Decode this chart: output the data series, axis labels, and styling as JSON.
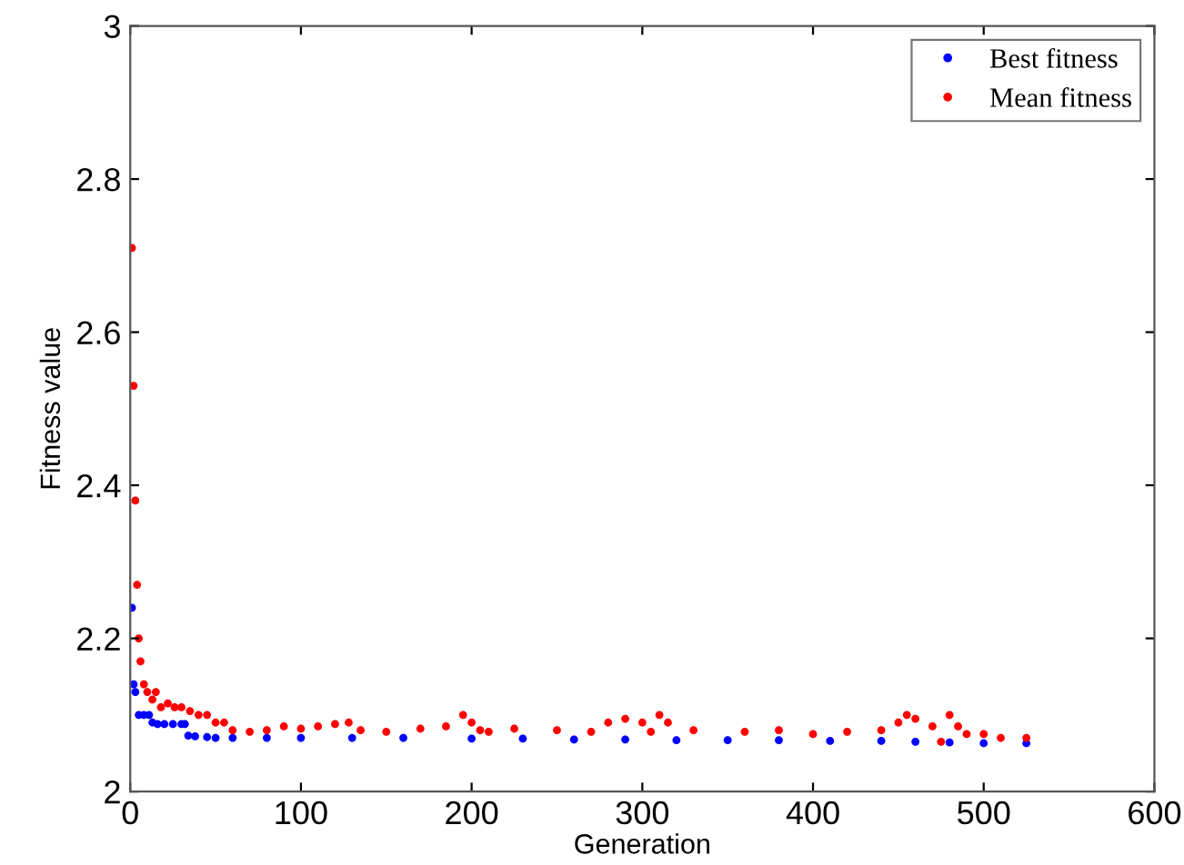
{
  "chart_data": {
    "type": "scatter",
    "xlabel": "Generation",
    "ylabel": "Fitness value",
    "xlim": [
      0,
      600
    ],
    "xticks": [
      0,
      100,
      200,
      300,
      400,
      500,
      600
    ],
    "ylim": [
      2,
      3
    ],
    "yticks": [
      2,
      2.2,
      2.4,
      2.6,
      2.8,
      3
    ],
    "grid": false,
    "legend": "top right",
    "marker": "circle",
    "series": [
      {
        "name": "Best fitness",
        "color": "#0000ff",
        "x": [
          1,
          2,
          3,
          5,
          8,
          11,
          13,
          16,
          20,
          25,
          30,
          32,
          34,
          38,
          45,
          50,
          60,
          80,
          100,
          130,
          160,
          200,
          230,
          260,
          290,
          320,
          350,
          380,
          410,
          440,
          460,
          480,
          500,
          525
        ],
        "values": [
          2.24,
          2.14,
          2.13,
          2.1,
          2.1,
          2.1,
          2.09,
          2.088,
          2.088,
          2.088,
          2.088,
          2.088,
          2.073,
          2.072,
          2.071,
          2.07,
          2.07,
          2.07,
          2.07,
          2.07,
          2.07,
          2.069,
          2.069,
          2.068,
          2.068,
          2.067,
          2.067,
          2.067,
          2.066,
          2.066,
          2.065,
          2.064,
          2.063,
          2.063
        ]
      },
      {
        "name": "Mean fitness",
        "color": "#ff0000",
        "x": [
          1,
          2,
          3,
          4,
          5,
          6,
          8,
          10,
          13,
          15,
          18,
          22,
          26,
          30,
          35,
          40,
          45,
          50,
          55,
          60,
          70,
          80,
          90,
          100,
          110,
          120,
          128,
          135,
          150,
          170,
          185,
          195,
          200,
          205,
          210,
          225,
          250,
          270,
          280,
          290,
          300,
          305,
          310,
          315,
          330,
          360,
          380,
          400,
          420,
          440,
          450,
          455,
          460,
          470,
          475,
          480,
          485,
          490,
          500,
          510,
          525
        ],
        "values": [
          2.71,
          2.53,
          2.38,
          2.27,
          2.2,
          2.17,
          2.14,
          2.13,
          2.12,
          2.13,
          2.11,
          2.115,
          2.11,
          2.11,
          2.105,
          2.1,
          2.1,
          2.09,
          2.09,
          2.08,
          2.078,
          2.08,
          2.085,
          2.082,
          2.085,
          2.088,
          2.09,
          2.08,
          2.078,
          2.082,
          2.085,
          2.1,
          2.09,
          2.08,
          2.078,
          2.082,
          2.08,
          2.078,
          2.09,
          2.095,
          2.09,
          2.078,
          2.1,
          2.09,
          2.08,
          2.078,
          2.08,
          2.075,
          2.078,
          2.08,
          2.09,
          2.1,
          2.095,
          2.085,
          2.065,
          2.1,
          2.085,
          2.075,
          2.075,
          2.07,
          2.07
        ]
      }
    ]
  }
}
